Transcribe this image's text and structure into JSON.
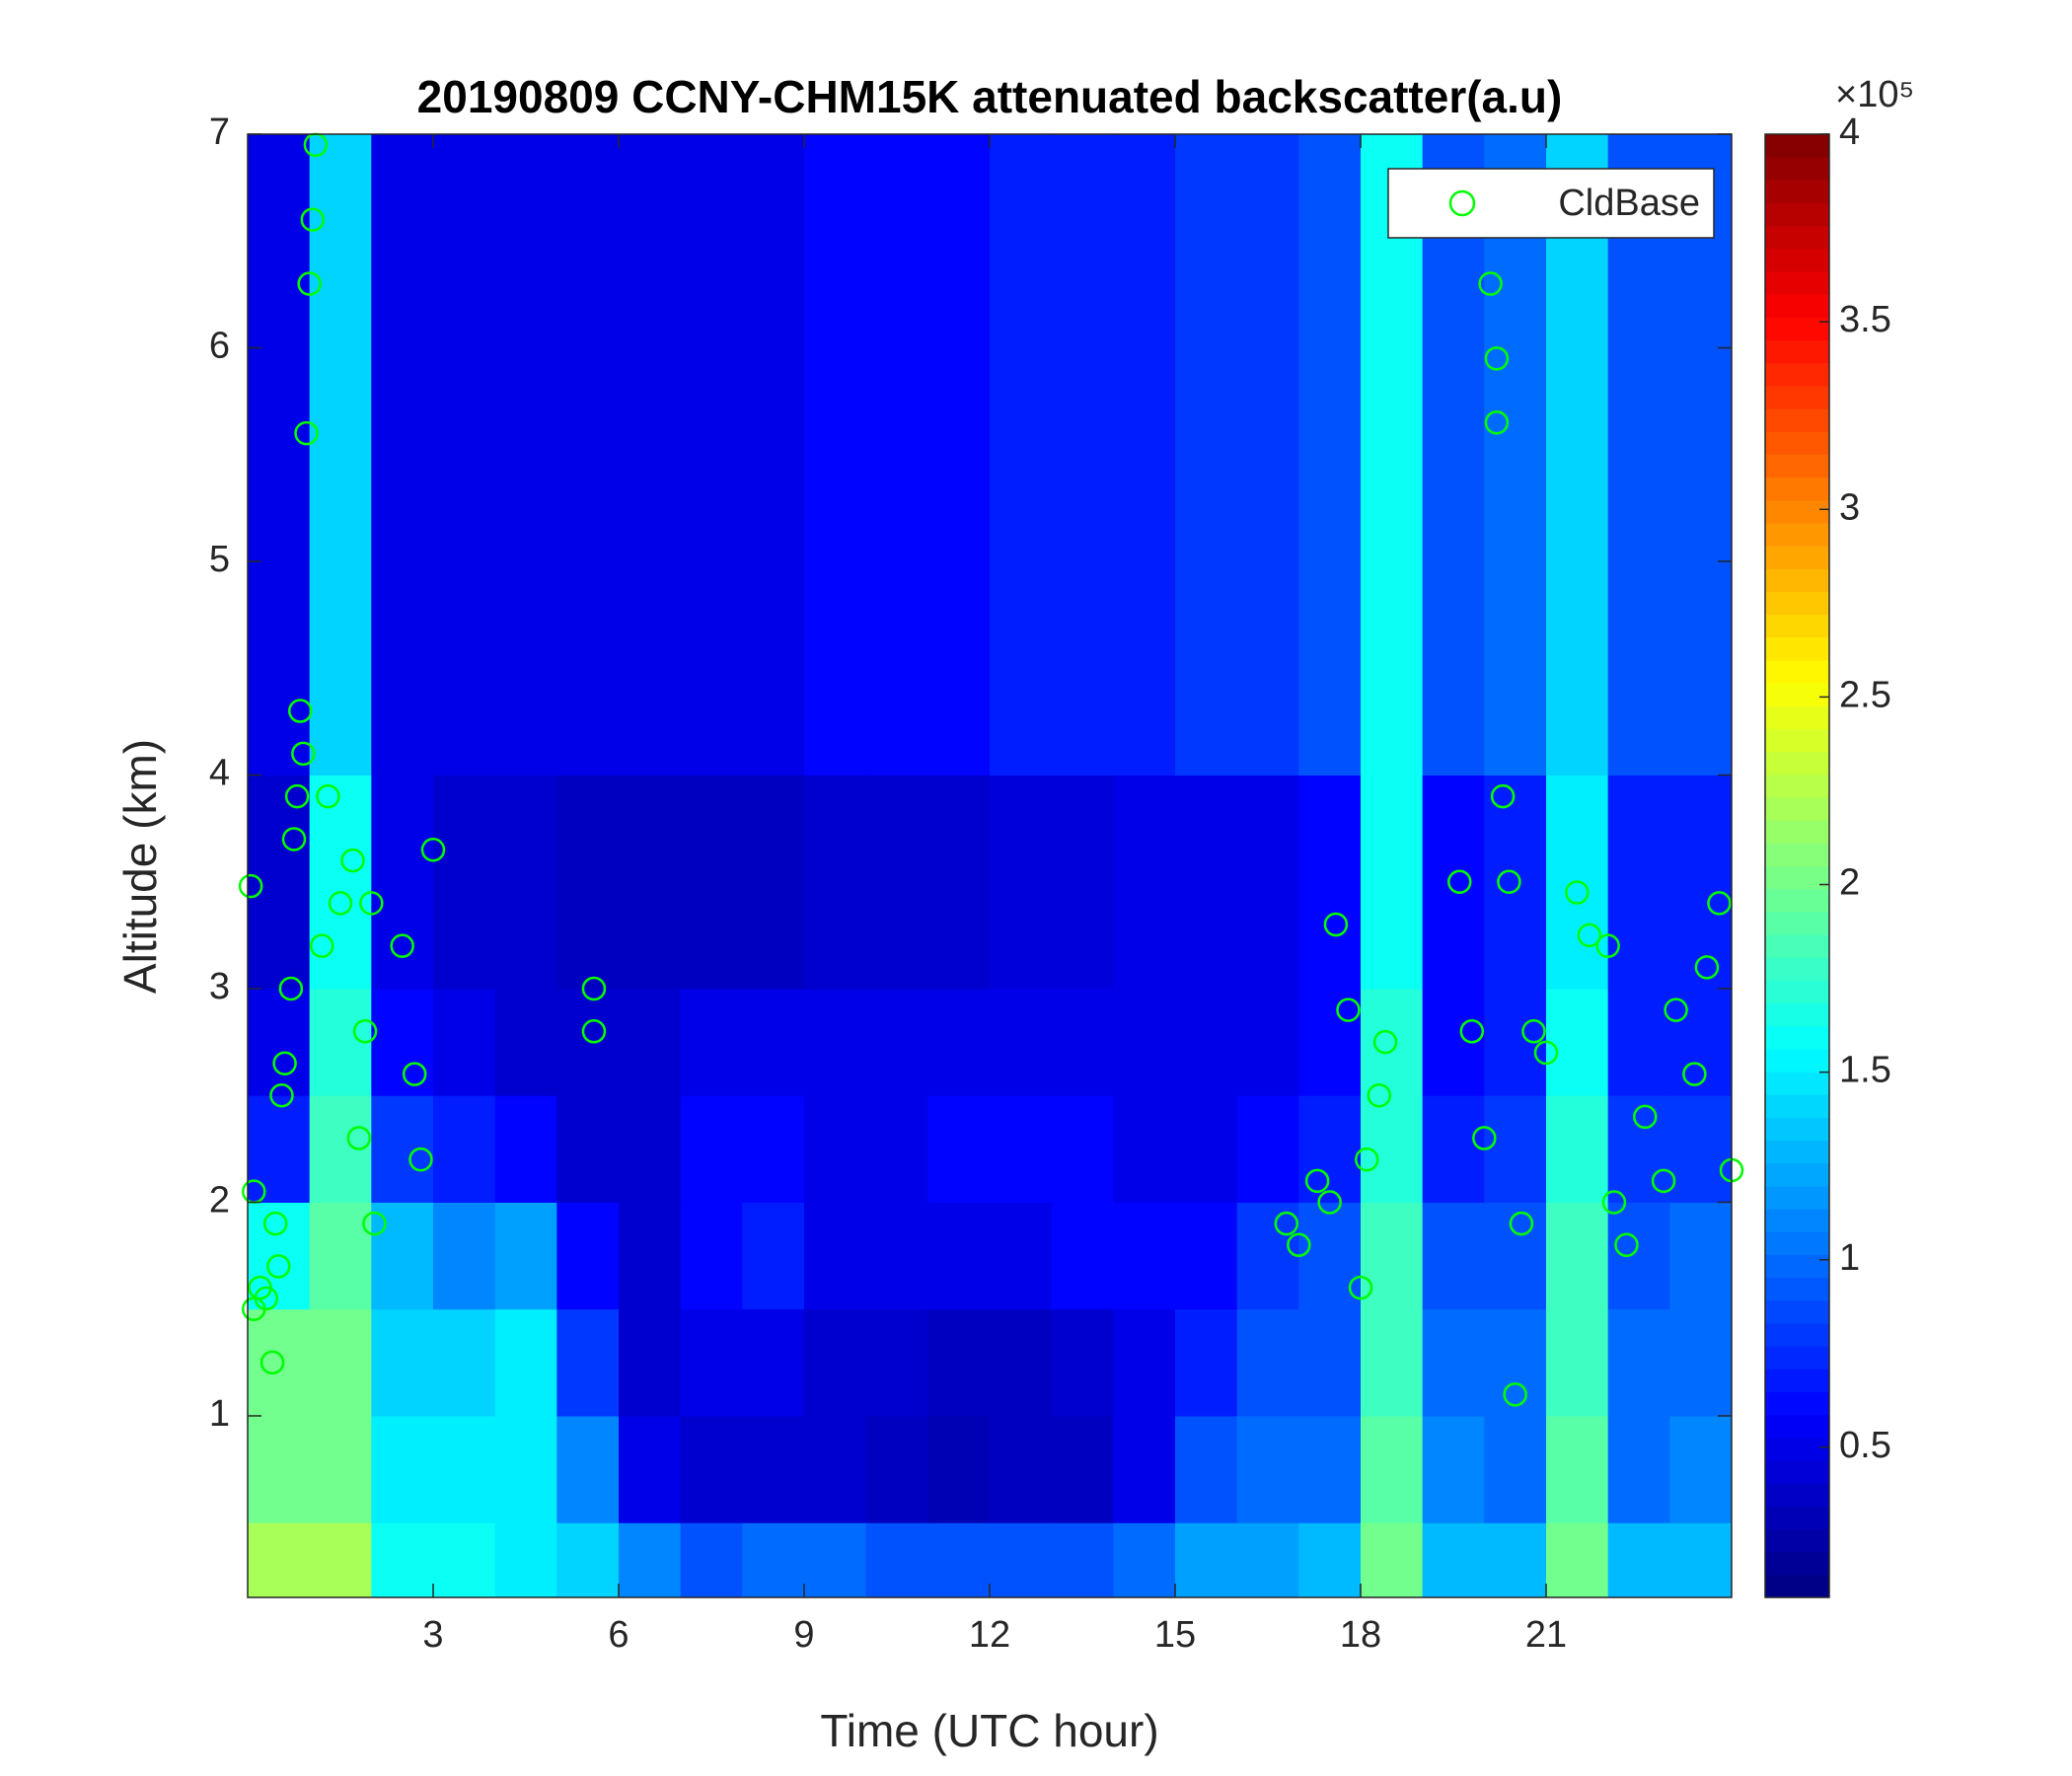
{
  "chart_data": {
    "type": "heatmap",
    "title": "20190809 CCNY-CHM15K attenuated backscatter(a.u)",
    "xlabel": "Time (UTC hour)",
    "ylabel": "Altitude (km)",
    "xlim": [
      0,
      24
    ],
    "ylim": [
      0.15,
      7
    ],
    "xticks": [
      3,
      6,
      9,
      12,
      15,
      18,
      21
    ],
    "yticks": [
      1,
      2,
      3,
      4,
      5,
      6,
      7
    ],
    "colormap": "jet",
    "clim": [
      0.1,
      4
    ],
    "cticks": [
      0.5,
      1,
      1.5,
      2,
      2.5,
      3,
      3.5,
      4
    ],
    "colorbar_exponent": "×10⁵",
    "xbins": [
      0,
      1,
      2,
      3,
      4,
      5,
      6,
      7,
      8,
      9,
      10,
      11,
      12,
      13,
      14,
      15,
      16,
      17,
      18,
      19,
      20,
      21,
      22,
      23,
      24
    ],
    "ybins": [
      0.15,
      0.5,
      1,
      1.5,
      2,
      2.5,
      3,
      4,
      7
    ],
    "z": [
      [
        2.2,
        2.2,
        1.6,
        1.6,
        1.5,
        1.4,
        1.1,
        0.9,
        1.0,
        1.0,
        0.9,
        0.9,
        0.9,
        0.9,
        1.0,
        1.2,
        1.2,
        1.3,
        2.0,
        1.3,
        1.3,
        2.0,
        1.3,
        1.3
      ],
      [
        2.0,
        2.0,
        1.5,
        1.5,
        1.5,
        1.1,
        0.5,
        0.4,
        0.4,
        0.4,
        0.35,
        0.3,
        0.35,
        0.35,
        0.5,
        0.9,
        1.0,
        1.0,
        1.9,
        1.1,
        1.0,
        1.9,
        1.0,
        1.1
      ],
      [
        2.0,
        2.0,
        1.4,
        1.4,
        1.5,
        0.8,
        0.4,
        0.5,
        0.5,
        0.4,
        0.4,
        0.35,
        0.35,
        0.4,
        0.5,
        0.7,
        0.9,
        0.9,
        1.8,
        1.0,
        1.0,
        1.8,
        1.0,
        1.0
      ],
      [
        1.6,
        1.9,
        1.3,
        1.1,
        1.2,
        0.6,
        0.4,
        0.6,
        0.7,
        0.5,
        0.5,
        0.5,
        0.5,
        0.6,
        0.6,
        0.6,
        0.8,
        0.9,
        1.8,
        0.9,
        0.9,
        1.8,
        0.9,
        1.0
      ],
      [
        0.7,
        1.8,
        0.8,
        0.7,
        0.6,
        0.4,
        0.4,
        0.6,
        0.6,
        0.5,
        0.5,
        0.6,
        0.6,
        0.6,
        0.5,
        0.5,
        0.6,
        0.7,
        1.7,
        0.7,
        0.8,
        1.7,
        0.8,
        0.8
      ],
      [
        0.5,
        1.7,
        0.6,
        0.5,
        0.4,
        0.4,
        0.4,
        0.5,
        0.5,
        0.5,
        0.5,
        0.5,
        0.5,
        0.5,
        0.5,
        0.5,
        0.5,
        0.6,
        1.7,
        0.6,
        0.7,
        1.6,
        0.7,
        0.7
      ],
      [
        0.4,
        1.6,
        0.5,
        0.4,
        0.4,
        0.35,
        0.35,
        0.35,
        0.35,
        0.4,
        0.4,
        0.4,
        0.45,
        0.45,
        0.5,
        0.5,
        0.5,
        0.6,
        1.6,
        0.6,
        0.7,
        1.5,
        0.7,
        0.7
      ],
      [
        0.5,
        1.4,
        0.5,
        0.5,
        0.5,
        0.5,
        0.5,
        0.5,
        0.5,
        0.6,
        0.6,
        0.6,
        0.7,
        0.7,
        0.7,
        0.8,
        0.8,
        0.9,
        1.6,
        0.9,
        1.0,
        1.4,
        0.9,
        0.9
      ]
    ],
    "series": [
      {
        "name": "CldBase",
        "color": "#00ff00",
        "marker": "circle",
        "x": [
          0.05,
          0.1,
          0.1,
          0.2,
          0.3,
          0.4,
          0.45,
          0.5,
          0.55,
          0.6,
          0.7,
          0.75,
          0.8,
          0.85,
          0.9,
          0.95,
          1.0,
          1.05,
          1.1,
          1.2,
          1.3,
          1.5,
          1.7,
          1.8,
          1.9,
          2.0,
          2.05,
          2.5,
          2.7,
          2.8,
          3.0,
          5.6,
          5.6,
          16.8,
          17.0,
          17.3,
          17.5,
          17.6,
          17.8,
          18.0,
          18.1,
          18.3,
          18.4,
          19.6,
          19.8,
          20.0,
          20.1,
          20.2,
          20.2,
          20.3,
          20.4,
          20.5,
          20.6,
          20.8,
          21.0,
          21.5,
          21.7,
          22.0,
          22.1,
          22.3,
          22.6,
          22.9,
          23.1,
          23.4,
          23.6,
          23.8,
          24.0
        ],
        "values": [
          3.48,
          2.05,
          1.5,
          1.6,
          1.55,
          1.25,
          1.9,
          1.7,
          2.5,
          2.65,
          3.0,
          3.7,
          3.9,
          4.3,
          4.1,
          5.6,
          6.3,
          6.6,
          6.95,
          3.2,
          3.9,
          3.4,
          3.6,
          2.3,
          2.8,
          3.4,
          1.9,
          3.2,
          2.6,
          2.2,
          3.65,
          2.8,
          3.0,
          1.9,
          1.8,
          2.1,
          2.0,
          3.3,
          2.9,
          1.6,
          2.2,
          2.5,
          2.75,
          3.5,
          2.8,
          2.3,
          6.3,
          5.95,
          5.65,
          3.9,
          3.5,
          1.1,
          1.9,
          2.8,
          2.7,
          3.45,
          3.25,
          3.2,
          2.0,
          1.8,
          2.4,
          2.1,
          2.9,
          2.6,
          3.1,
          3.4,
          2.15
        ]
      }
    ],
    "legend": "northeast"
  }
}
